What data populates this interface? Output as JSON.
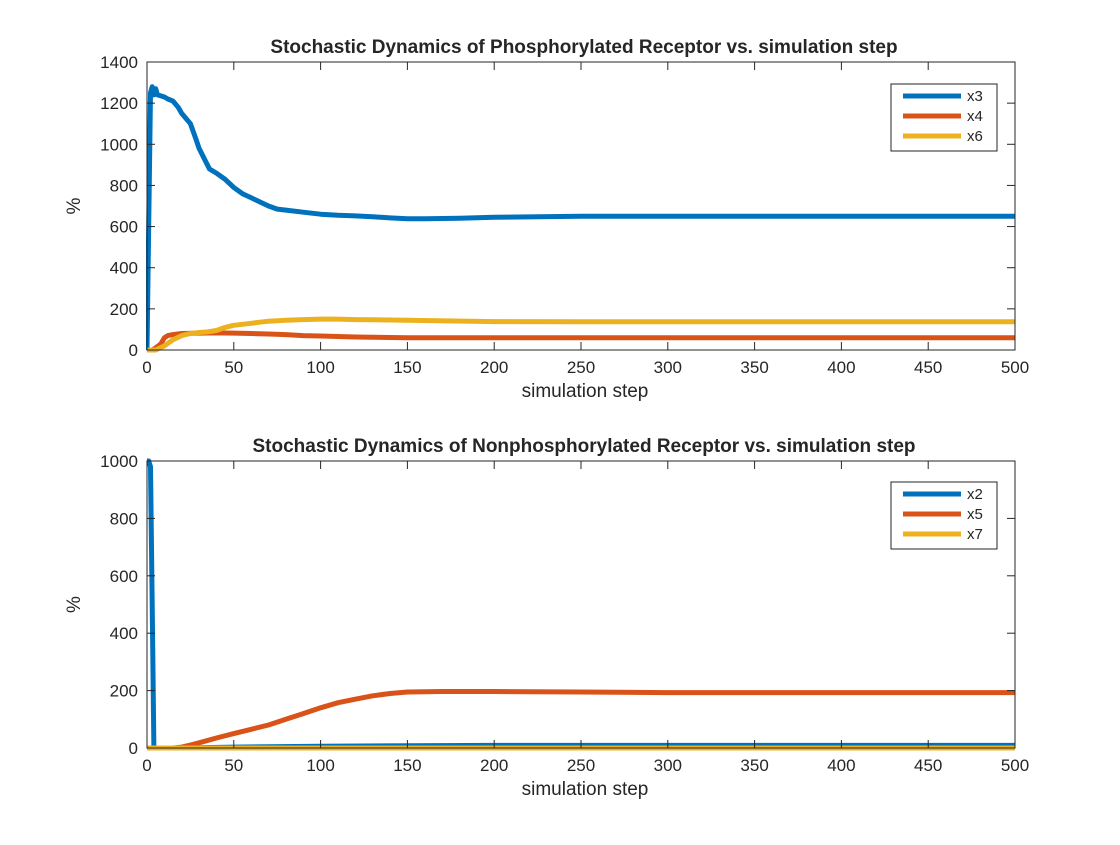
{
  "colors": {
    "blue": "#0072BD",
    "orange": "#D95319",
    "yellow": "#EDB120"
  },
  "chart_data": [
    {
      "type": "line",
      "title": "Stochastic Dynamics of Phosphorylated Receptor vs. simulation step",
      "xlabel": "simulation step",
      "ylabel": "%",
      "xlim": [
        0,
        500
      ],
      "ylim": [
        0,
        1400
      ],
      "xticks": [
        0,
        50,
        100,
        150,
        200,
        250,
        300,
        350,
        400,
        450,
        500
      ],
      "yticks": [
        0,
        200,
        400,
        600,
        800,
        1000,
        1200,
        1400
      ],
      "grid": false,
      "legend_position": "top-right",
      "series": [
        {
          "name": "x3",
          "color": "#0072BD",
          "x": [
            0,
            2,
            3,
            4,
            5,
            6,
            8,
            10,
            12,
            15,
            18,
            20,
            22,
            25,
            28,
            30,
            33,
            36,
            40,
            45,
            50,
            55,
            60,
            65,
            70,
            75,
            80,
            90,
            100,
            110,
            120,
            130,
            140,
            150,
            160,
            180,
            200,
            250,
            300,
            350,
            400,
            450,
            500
          ],
          "y": [
            0,
            1250,
            1280,
            1240,
            1270,
            1240,
            1235,
            1230,
            1220,
            1210,
            1180,
            1150,
            1130,
            1100,
            1030,
            980,
            930,
            880,
            860,
            830,
            790,
            760,
            740,
            720,
            700,
            685,
            680,
            670,
            660,
            655,
            652,
            648,
            642,
            638,
            638,
            640,
            645,
            650,
            650,
            650,
            650,
            650,
            650
          ]
        },
        {
          "name": "x4",
          "color": "#D95319",
          "x": [
            0,
            3,
            5,
            8,
            10,
            12,
            15,
            20,
            30,
            40,
            50,
            60,
            70,
            80,
            90,
            100,
            120,
            150,
            200,
            300,
            400,
            500
          ],
          "y": [
            0,
            0,
            10,
            30,
            60,
            70,
            75,
            80,
            82,
            83,
            82,
            80,
            78,
            75,
            70,
            68,
            63,
            60,
            60,
            60,
            60,
            60
          ]
        },
        {
          "name": "x6",
          "color": "#EDB120",
          "x": [
            0,
            5,
            10,
            15,
            20,
            25,
            30,
            35,
            40,
            45,
            50,
            55,
            60,
            65,
            70,
            75,
            80,
            90,
            100,
            110,
            120,
            130,
            150,
            200,
            250,
            300,
            400,
            500
          ],
          "y": [
            0,
            0,
            20,
            50,
            70,
            80,
            85,
            88,
            95,
            110,
            120,
            125,
            130,
            135,
            140,
            142,
            145,
            148,
            150,
            150,
            148,
            147,
            145,
            138,
            137,
            137,
            137,
            137
          ]
        }
      ]
    },
    {
      "type": "line",
      "title": "Stochastic Dynamics of Nonphosphorylated Receptor vs. simulation step",
      "xlabel": "simulation step",
      "ylabel": "%",
      "xlim": [
        0,
        500
      ],
      "ylim": [
        0,
        1000
      ],
      "xticks": [
        0,
        50,
        100,
        150,
        200,
        250,
        300,
        350,
        400,
        450,
        500
      ],
      "yticks": [
        0,
        200,
        400,
        600,
        800,
        1000
      ],
      "grid": false,
      "legend_position": "top-right",
      "series": [
        {
          "name": "x2",
          "color": "#0072BD",
          "x": [
            0,
            1,
            2,
            3,
            4,
            20,
            50,
            100,
            150,
            200,
            300,
            400,
            500
          ],
          "y": [
            1000,
            1000,
            980,
            500,
            0,
            0,
            3,
            6,
            8,
            9,
            9,
            9,
            9
          ]
        },
        {
          "name": "x5",
          "color": "#D95319",
          "x": [
            0,
            15,
            20,
            25,
            30,
            40,
            50,
            60,
            70,
            80,
            90,
            100,
            110,
            120,
            130,
            140,
            150,
            170,
            200,
            250,
            300,
            400,
            500
          ],
          "y": [
            0,
            0,
            3,
            10,
            18,
            35,
            50,
            65,
            80,
            100,
            120,
            140,
            158,
            170,
            182,
            190,
            195,
            197,
            197,
            195,
            193,
            193,
            193
          ]
        },
        {
          "name": "x7",
          "color": "#EDB120",
          "x": [
            0,
            100,
            200,
            300,
            400,
            500
          ],
          "y": [
            0,
            0,
            0,
            0,
            0,
            0
          ]
        }
      ]
    }
  ]
}
